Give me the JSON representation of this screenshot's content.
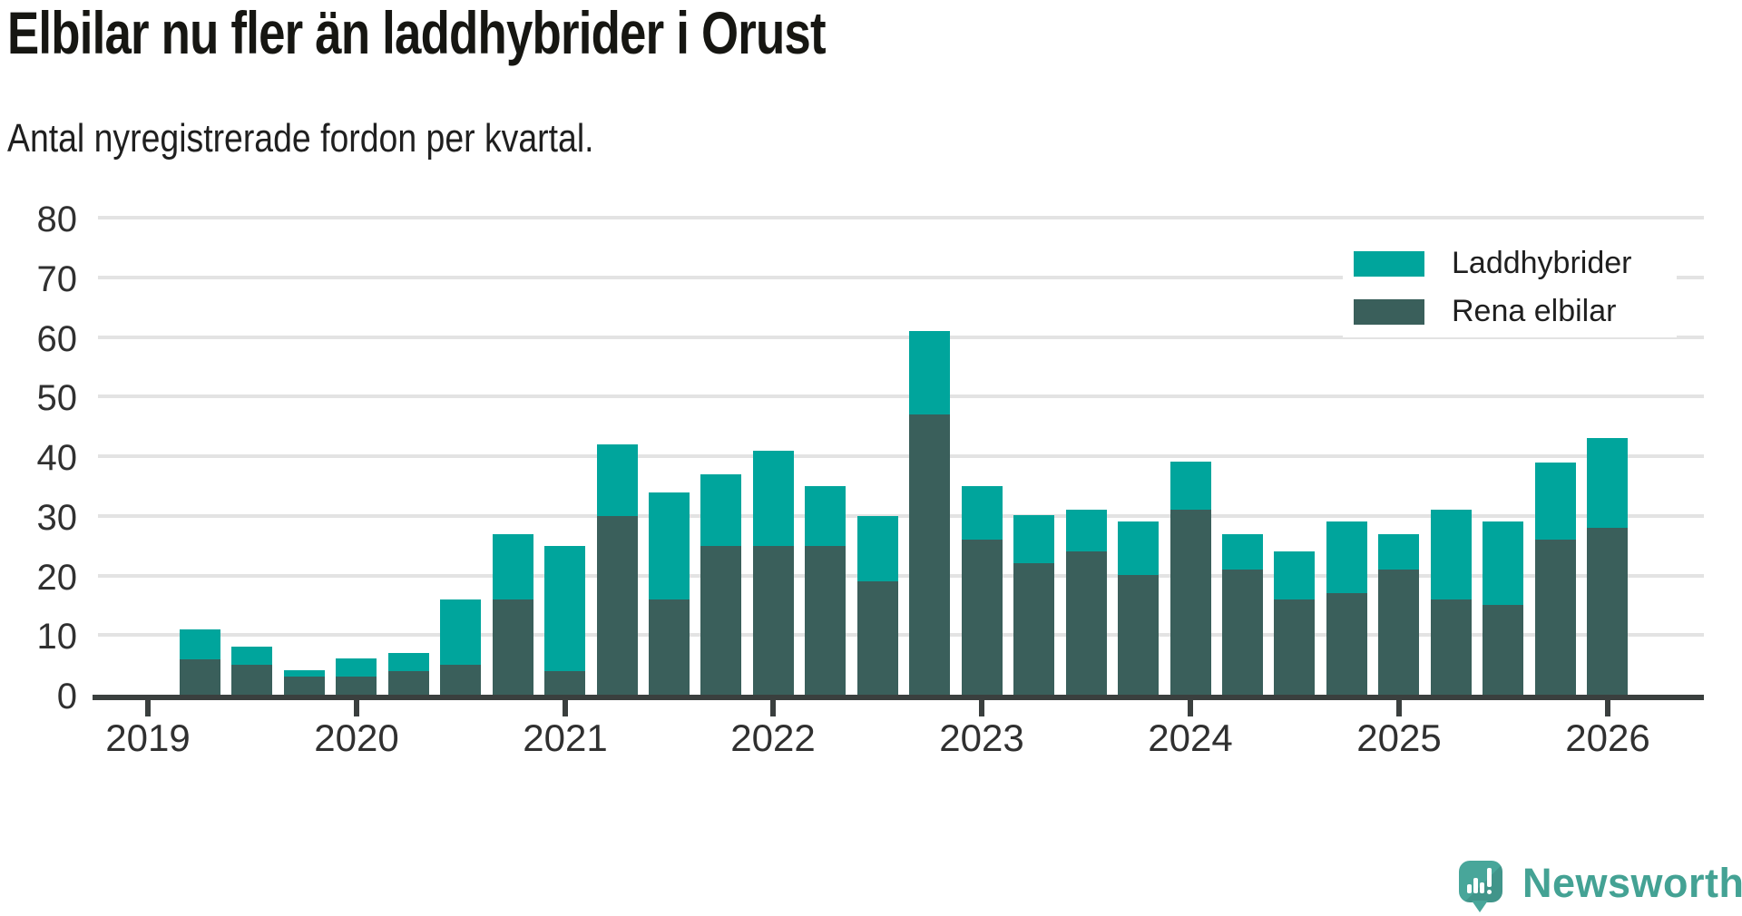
{
  "chart_data": {
    "type": "bar",
    "stacked": true,
    "title": "Elbilar nu fler än laddhybrider i Orust",
    "subtitle": "Antal nyregistrerade fordon per kvartal.",
    "categories": [
      "2019-Q2",
      "2019-Q3",
      "2019-Q4",
      "2020-Q1",
      "2020-Q2",
      "2020-Q3",
      "2020-Q4",
      "2021-Q1",
      "2021-Q2",
      "2021-Q3",
      "2021-Q4",
      "2022-Q1",
      "2022-Q2",
      "2022-Q3",
      "2022-Q4",
      "2023-Q1",
      "2023-Q2",
      "2023-Q3",
      "2023-Q4",
      "2024-Q1",
      "2024-Q2",
      "2024-Q3",
      "2024-Q4",
      "2025-Q1",
      "2025-Q2",
      "2025-Q3",
      "2025-Q4",
      "2026-Q1"
    ],
    "series": [
      {
        "name": "Laddhybrider",
        "color": "#00A59C",
        "stack_position": "top",
        "values": [
          5,
          3,
          1,
          3,
          3,
          11,
          11,
          21,
          12,
          18,
          12,
          16,
          10,
          11,
          14,
          9,
          8,
          7,
          9,
          8,
          6,
          8,
          12,
          6,
          15,
          14,
          13,
          15
        ]
      },
      {
        "name": "Rena elbilar",
        "color": "#3A5F5B",
        "stack_position": "bottom",
        "values": [
          6,
          5,
          3,
          3,
          4,
          5,
          16,
          4,
          30,
          16,
          25,
          25,
          25,
          19,
          47,
          26,
          22,
          24,
          20,
          31,
          21,
          16,
          17,
          21,
          16,
          15,
          26,
          28
        ]
      }
    ],
    "totals": [
      11,
      8,
      4,
      6,
      7,
      16,
      27,
      25,
      42,
      34,
      37,
      41,
      35,
      30,
      61,
      35,
      30,
      31,
      29,
      39,
      27,
      24,
      29,
      27,
      31,
      29,
      39,
      43
    ],
    "x_tick_labels": [
      "2019",
      "2020",
      "2021",
      "2022",
      "2023",
      "2024",
      "2025",
      "2026"
    ],
    "y_tick_labels": [
      "0",
      "10",
      "20",
      "30",
      "40",
      "50",
      "60",
      "70",
      "80"
    ],
    "ylim": [
      0,
      80
    ],
    "grid": true,
    "legend_position": "top-right"
  },
  "footer": {
    "brand": "Newsworthy"
  },
  "colors": {
    "laddhybrider": "#00A59C",
    "rena_elbilar": "#3A5F5B",
    "title_text": "#161612",
    "axis_text": "#303030",
    "gridline": "#E3E3E3",
    "axis_line": "#3A3F3E",
    "logo_teal": "#48A69A",
    "logo_text": "#44A294",
    "background": "#FFFFFF"
  }
}
